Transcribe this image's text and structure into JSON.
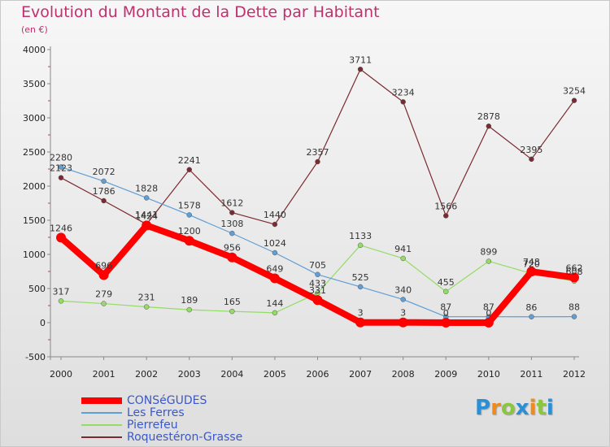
{
  "chart_data": {
    "type": "line",
    "title": "Evolution du Montant de la Dette par Habitant",
    "subtitle": "(en €)",
    "categories": [
      "2000",
      "2001",
      "2002",
      "2003",
      "2004",
      "2005",
      "2006",
      "2007",
      "2008",
      "2009",
      "2010",
      "2011",
      "2012"
    ],
    "ylim": [
      -500,
      4000
    ],
    "yticks": [
      -500,
      0,
      500,
      1000,
      1500,
      2000,
      2500,
      3000,
      3500,
      4000
    ],
    "grid": false,
    "legend_position": "bottom-left",
    "series": [
      {
        "name": "CONSéGUDES",
        "color": "#ff0000",
        "values": [
          1246,
          696,
          1424,
          1200,
          956,
          649,
          331,
          3,
          3,
          0,
          0,
          748,
          662
        ],
        "labels": [
          "1246",
          "696",
          "1424",
          "1200",
          "956",
          "649",
          "331",
          "3",
          "3",
          "0",
          "0",
          "748",
          "662"
        ]
      },
      {
        "name": "Les Ferres",
        "color": "#5f9ed6",
        "values": [
          2280,
          2072,
          1828,
          1578,
          1308,
          1024,
          705,
          525,
          340,
          87,
          87,
          86,
          88
        ],
        "labels": [
          "2280",
          "2072",
          "1828",
          "1578",
          "1308",
          "1024",
          "705",
          "525",
          "340",
          "87",
          "87",
          "86",
          "88"
        ]
      },
      {
        "name": "Pierrefeu",
        "color": "#94dc64",
        "values": [
          317,
          279,
          231,
          189,
          165,
          144,
          433,
          1133,
          941,
          455,
          899,
          720,
          608
        ],
        "labels": [
          "317",
          "279",
          "231",
          "189",
          "165",
          "144",
          "433",
          "1133",
          "941",
          "455",
          "899",
          "720",
          "608"
        ]
      },
      {
        "name": "Roquestéron-Grasse",
        "color": "#7a2a30",
        "values": [
          2123,
          1786,
          1441,
          2241,
          1612,
          1440,
          2357,
          3711,
          3234,
          1566,
          2878,
          2395,
          3254
        ],
        "labels": [
          "2123",
          "1786",
          "1441",
          "2241",
          "1612",
          "1440",
          "2357",
          "3711",
          "3234",
          "1566",
          "2878",
          "2395",
          "3254"
        ]
      }
    ]
  },
  "brand": {
    "letters": [
      "P",
      "r",
      "o",
      "x",
      "i",
      "t",
      "i"
    ],
    "colors": [
      "#2b8fd6",
      "#f08a1c",
      "#8cc63e",
      "#2b8fd6",
      "#f08a1c",
      "#8cc63e",
      "#2b8fd6"
    ]
  }
}
